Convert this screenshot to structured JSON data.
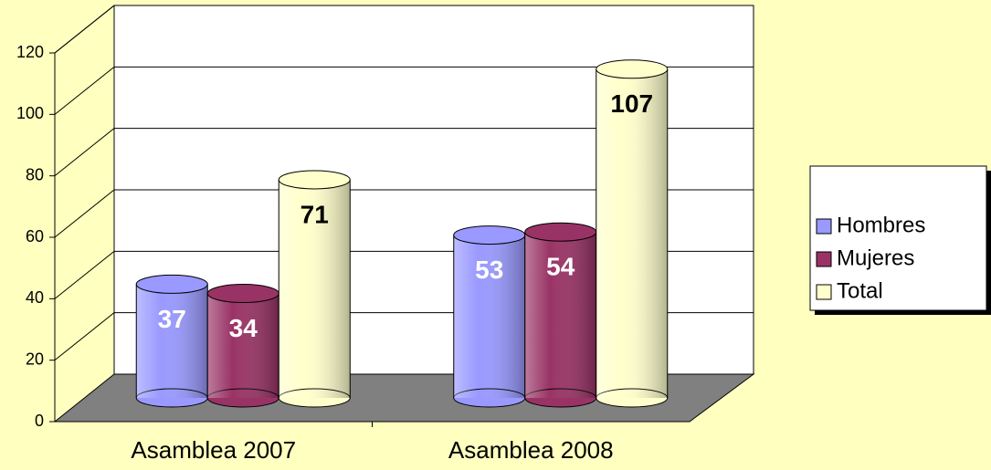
{
  "chart_data": {
    "type": "bar",
    "categories": [
      "Asamblea 2007",
      "Asamblea 2008"
    ],
    "series": [
      {
        "name": "Hombres",
        "color": "#9999ff",
        "values": [
          37,
          53
        ]
      },
      {
        "name": "Mujeres",
        "color": "#993366",
        "values": [
          34,
          54
        ]
      },
      {
        "name": "Total",
        "color": "#ffffcc",
        "values": [
          71,
          107
        ]
      }
    ],
    "ylim": [
      0,
      120
    ],
    "yticks": [
      0,
      20,
      40,
      60,
      80,
      100,
      120
    ],
    "grid": true,
    "legend": "right"
  }
}
